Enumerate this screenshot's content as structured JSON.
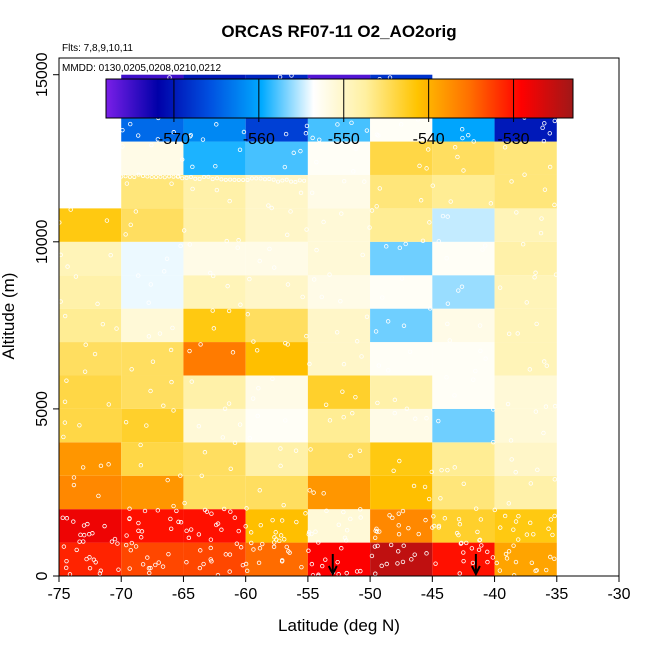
{
  "chart_data": {
    "type": "heatmap",
    "title": "ORCAS RF07-11 O2_AO2orig",
    "flights_note": "Flts: 7,8,9,10,11",
    "dates_note": "MMDD: 0130,0205,0208,0210,0212",
    "xlabel": "Latitude (deg N)",
    "ylabel": "Altitude (m)",
    "xlim": [
      -75,
      -30
    ],
    "ylim": [
      0,
      15500
    ],
    "x_ticks": [
      -75,
      -70,
      -65,
      -60,
      -55,
      -50,
      -45,
      -40,
      -35,
      -30
    ],
    "x_tick_labels": [
      "-75",
      "-70",
      "-65",
      "-60",
      "-55",
      "-50",
      "-45",
      "-40",
      "-35",
      "-30"
    ],
    "y_ticks": [
      0,
      5000,
      10000,
      15000
    ],
    "y_tick_labels": [
      "0",
      "5000",
      "10000",
      "15000"
    ],
    "colorbar": {
      "min": -578,
      "max": -523,
      "ticks": [
        -570,
        -560,
        -550,
        -540,
        -530
      ],
      "tick_labels": [
        "-570",
        "-560",
        "-550",
        "-540",
        "-530"
      ],
      "colors": [
        "#7a1fe8",
        "#0000a8",
        "#0050e0",
        "#00aaff",
        "#ffffff",
        "#fff0a0",
        "#ffc400",
        "#ff7000",
        "#ff0000",
        "#a01818"
      ]
    },
    "lat_bin_edges": [
      -75,
      -70,
      -65,
      -60,
      -55,
      -50,
      -45,
      -40,
      -35
    ],
    "alt_bin_size_m": 1000,
    "grid_values": [
      [
        -531,
        -533,
        -533,
        -535,
        -529,
        -525,
        -530,
        -539
      ],
      [
        -528,
        -530,
        -530,
        -541,
        -551,
        -537,
        -543,
        -542
      ],
      [
        -537,
        -538,
        -545,
        -545,
        -538,
        -541,
        -546,
        -548
      ],
      [
        -538,
        -544,
        -545,
        -548,
        -545,
        -542,
        -547,
        -550
      ],
      [
        -544,
        -543,
        -551,
        -553,
        -547,
        -552,
        -557,
        -551
      ],
      [
        -544,
        -545,
        -548,
        -552,
        -543,
        -548,
        -553,
        -551
      ],
      [
        -545,
        -545,
        -536,
        -541,
        -550,
        -553,
        -553,
        -549
      ],
      [
        -547,
        -551,
        -542,
        -545,
        -550,
        -557,
        -552,
        -549
      ],
      [
        -548,
        -554,
        -549,
        -550,
        -552,
        -553,
        -556,
        -549
      ],
      [
        -549,
        -554,
        -552,
        -552,
        -551,
        -557,
        -553,
        -548
      ],
      [
        -542,
        -545,
        -548,
        -550,
        -551,
        -547,
        -555,
        -549
      ],
      [
        null,
        -546,
        -548,
        -550,
        -552,
        -546,
        -547,
        -546
      ],
      [
        null,
        -552,
        -559,
        -558,
        -553,
        -544,
        -545,
        -546
      ],
      [
        null,
        -564,
        -562,
        -567,
        -558,
        -553,
        -560,
        -570
      ],
      [
        null,
        -575,
        -570,
        -569,
        -576,
        -568,
        null,
        null
      ]
    ],
    "arrows_at_latitude": [
      -53,
      -41.5
    ]
  }
}
